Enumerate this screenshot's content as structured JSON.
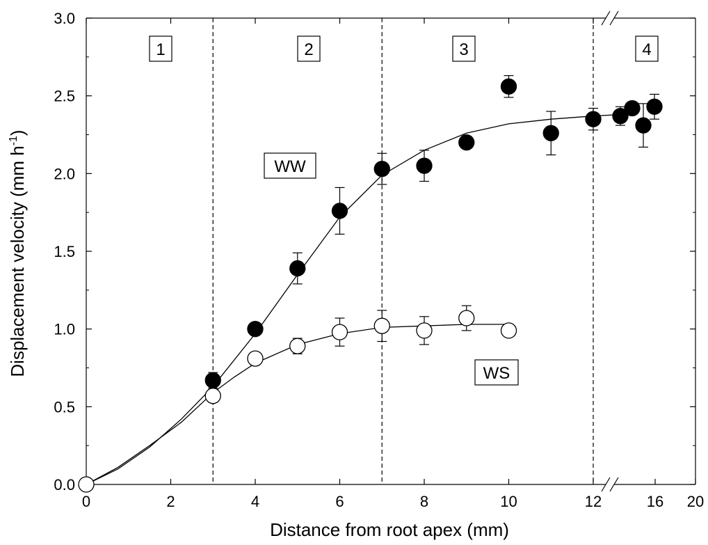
{
  "chart_data": {
    "type": "scatter",
    "xlabel": "Distance from root apex (mm)",
    "ylabel": "Displacement velocity (mm h-1)",
    "ylabel_main": "Displacement velocity (mm h",
    "ylabel_sup": "-1",
    "ylabel_close": ")",
    "ylim": [
      0,
      3.0
    ],
    "y_ticks": [
      0.0,
      0.5,
      1.0,
      1.5,
      2.0,
      2.5,
      3.0
    ],
    "y_tick_labels": [
      "0.0",
      "0.5",
      "1.0",
      "1.5",
      "2.0",
      "2.5",
      "3.0"
    ],
    "x_ticks_left": [
      0,
      2,
      4,
      6,
      8,
      10,
      12
    ],
    "x_tick_labels_left": [
      "0",
      "2",
      "4",
      "6",
      "8",
      "10",
      "12"
    ],
    "x_ticks_right": [
      16,
      20
    ],
    "x_tick_labels_right": [
      "16",
      "20"
    ],
    "x_break": {
      "left_range": [
        0,
        12.5
      ],
      "right_range": [
        12.5,
        20
      ]
    },
    "grid": false,
    "zones": [
      {
        "label": "1",
        "x_center": 1.5
      },
      {
        "label": "2",
        "x_center": 5.0
      },
      {
        "label": "3",
        "x_center": 9.5
      },
      {
        "label": "4",
        "x_center": 14.5
      }
    ],
    "zone_boundaries": [
      3.0,
      7.0,
      12.0
    ],
    "series": [
      {
        "name": "WW",
        "marker": "filled",
        "color": "#000000",
        "points": [
          {
            "x": 3,
            "y": 0.67,
            "err": 0.05
          },
          {
            "x": 4,
            "y": 1.0,
            "err": 0.0
          },
          {
            "x": 5,
            "y": 1.39,
            "err": 0.1
          },
          {
            "x": 6,
            "y": 1.76,
            "err": 0.15
          },
          {
            "x": 7,
            "y": 2.03,
            "err": 0.1
          },
          {
            "x": 8,
            "y": 2.05,
            "err": 0.1
          },
          {
            "x": 9,
            "y": 2.2,
            "err": 0.0
          },
          {
            "x": 10,
            "y": 2.56,
            "err": 0.07
          },
          {
            "x": 11,
            "y": 2.26,
            "err": 0.14
          },
          {
            "x": 12,
            "y": 2.35,
            "err": 0.07
          },
          {
            "x": 13,
            "y": 2.37,
            "err": 0.06
          },
          {
            "x": 13.5,
            "y": 2.42,
            "err": 0.0
          },
          {
            "x": 14,
            "y": 2.31,
            "err": 0.14
          },
          {
            "x": 14.5,
            "y": 2.43,
            "err": 0.08
          }
        ],
        "fit_curve": [
          [
            0,
            0
          ],
          [
            0.75,
            0.1
          ],
          [
            1.5,
            0.24
          ],
          [
            2.25,
            0.42
          ],
          [
            3,
            0.63
          ],
          [
            4,
            0.97
          ],
          [
            5,
            1.35
          ],
          [
            6,
            1.72
          ],
          [
            7,
            1.99
          ],
          [
            8,
            2.15
          ],
          [
            9,
            2.26
          ],
          [
            10,
            2.32
          ],
          [
            11,
            2.35
          ],
          [
            12,
            2.37
          ],
          [
            13,
            2.38
          ],
          [
            14,
            2.38
          ],
          [
            14.5,
            2.38
          ]
        ]
      },
      {
        "name": "WS",
        "marker": "open",
        "color": "#000000",
        "points": [
          {
            "x": 0,
            "y": 0.0,
            "err": 0.0
          },
          {
            "x": 3,
            "y": 0.57,
            "err": 0.04
          },
          {
            "x": 4,
            "y": 0.81,
            "err": 0.04
          },
          {
            "x": 5,
            "y": 0.89,
            "err": 0.05
          },
          {
            "x": 6,
            "y": 0.98,
            "err": 0.09
          },
          {
            "x": 7,
            "y": 1.02,
            "err": 0.1
          },
          {
            "x": 8,
            "y": 0.99,
            "err": 0.09
          },
          {
            "x": 9,
            "y": 1.07,
            "err": 0.08
          },
          {
            "x": 10,
            "y": 0.99,
            "err": 0.0
          }
        ],
        "fit_curve": [
          [
            0,
            0
          ],
          [
            0.75,
            0.11
          ],
          [
            1.5,
            0.25
          ],
          [
            2.25,
            0.4
          ],
          [
            3,
            0.59
          ],
          [
            3.5,
            0.69
          ],
          [
            4,
            0.78
          ],
          [
            5,
            0.9
          ],
          [
            6,
            0.97
          ],
          [
            7,
            1.01
          ],
          [
            8,
            1.02
          ],
          [
            9,
            1.03
          ],
          [
            10,
            1.03
          ]
        ]
      }
    ]
  }
}
